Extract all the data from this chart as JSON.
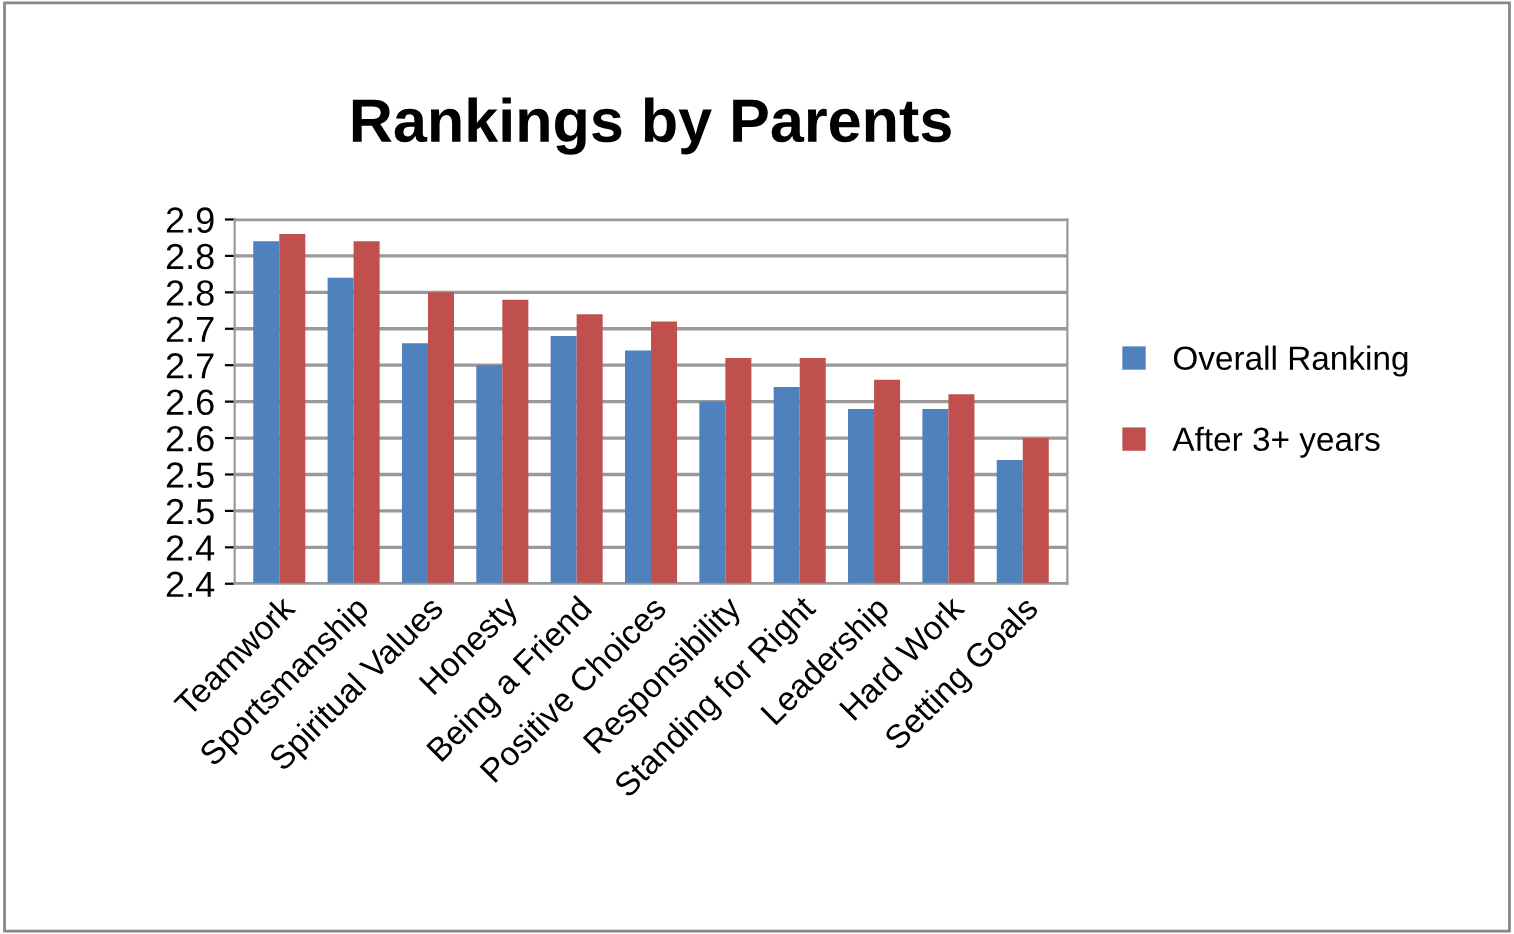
{
  "chart_data": {
    "type": "bar",
    "title": "Rankings by Parents",
    "categories": [
      "Teamwork",
      "Sportsmanship",
      "Spiritual Values",
      "Honesty",
      "Being a Friend",
      "Positive Choices",
      "Responsibility",
      "Standing for Right",
      "Leadership",
      "Hard Work",
      "Setting Goals"
    ],
    "series": [
      {
        "name": "Overall Ranking",
        "color": "#4f81bd",
        "values": [
          2.87,
          2.82,
          2.73,
          2.7,
          2.74,
          2.72,
          2.65,
          2.67,
          2.64,
          2.64,
          2.57
        ]
      },
      {
        "name": "After 3+ years",
        "color": "#c0504d",
        "values": [
          2.88,
          2.87,
          2.8,
          2.79,
          2.77,
          2.76,
          2.71,
          2.71,
          2.68,
          2.66,
          2.6
        ]
      }
    ],
    "ylim": [
      2.4,
      2.9
    ],
    "yticks": [
      {
        "value": 2.4,
        "label": "2.4"
      },
      {
        "value": 2.45,
        "label": "2.4"
      },
      {
        "value": 2.5,
        "label": "2.5"
      },
      {
        "value": 2.55,
        "label": "2.5"
      },
      {
        "value": 2.6,
        "label": "2.6"
      },
      {
        "value": 2.65,
        "label": "2.6"
      },
      {
        "value": 2.7,
        "label": "2.7"
      },
      {
        "value": 2.75,
        "label": "2.7"
      },
      {
        "value": 2.8,
        "label": "2.8"
      },
      {
        "value": 2.85,
        "label": "2.8"
      },
      {
        "value": 2.9,
        "label": "2.9"
      }
    ],
    "grid": "y",
    "legend": "right"
  }
}
